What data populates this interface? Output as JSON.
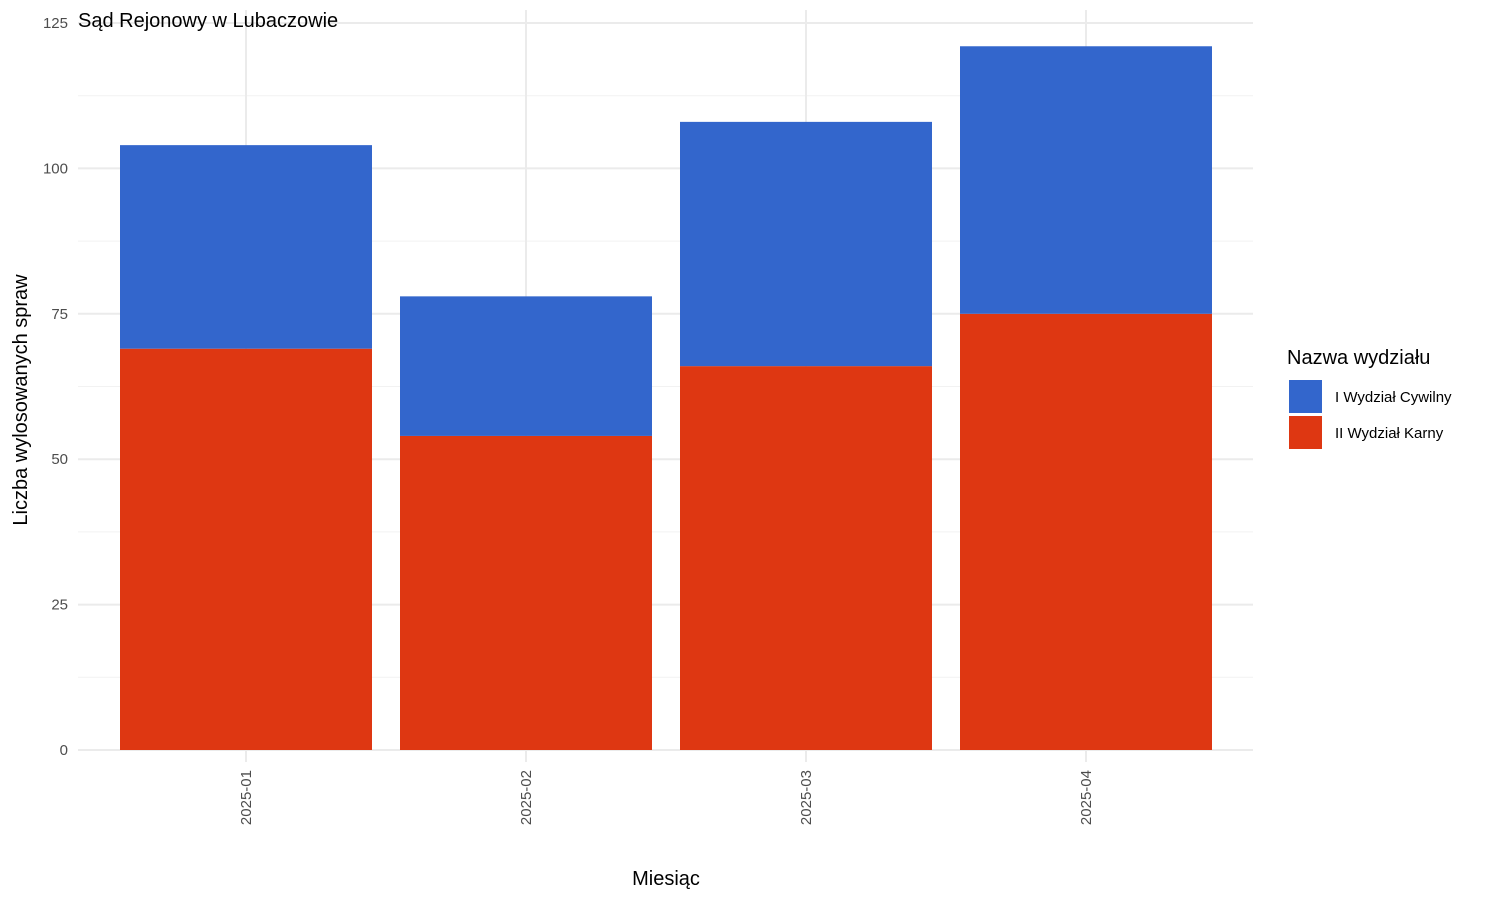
{
  "chart_data": {
    "type": "bar",
    "stacked": true,
    "title": "Sąd Rejonowy w Lubaczowie",
    "xlabel": "Miesiąc",
    "ylabel": "Liczba wylosowanych spraw",
    "categories": [
      "2025-01",
      "2025-02",
      "2025-03",
      "2025-04"
    ],
    "series": [
      {
        "name": "II Wydział Karny",
        "color": "#DE3712",
        "values": [
          69,
          54,
          66,
          75
        ]
      },
      {
        "name": "I Wydział Cywilny",
        "color": "#3366CC",
        "values": [
          35,
          24,
          42,
          46
        ]
      }
    ],
    "ylim": [
      0,
      125
    ],
    "yticks": [
      0,
      25,
      50,
      75,
      100,
      125
    ],
    "grid": true,
    "legend": {
      "title": "Nazwa wydziału",
      "position": "right",
      "entries": [
        "I Wydział Cywilny",
        "II Wydział Karny"
      ]
    }
  }
}
